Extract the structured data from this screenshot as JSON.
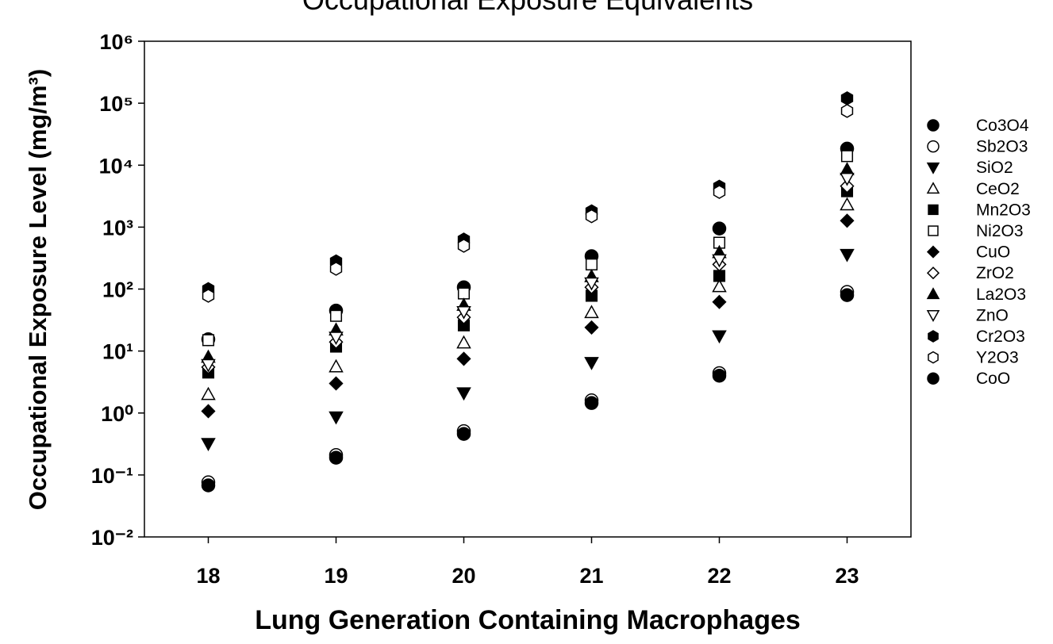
{
  "chart_data": {
    "type": "scatter",
    "title": "Occupational Exposure Equivalents",
    "xlabel": "Lung Generation Containing Macrophages",
    "ylabel": "Occupational Exposure Level (mg/m³)",
    "x": [
      18,
      19,
      20,
      21,
      22,
      23
    ],
    "xlim": [
      17.5,
      23.5
    ],
    "xticks": [
      18,
      19,
      20,
      21,
      22,
      23
    ],
    "ylim": [
      0.01,
      1000000
    ],
    "yscale": "log",
    "yticks": [
      {
        "value": 0.01,
        "label": "10⁻²"
      },
      {
        "value": 0.1,
        "label": "10⁻¹"
      },
      {
        "value": 1,
        "label": "10⁰"
      },
      {
        "value": 10,
        "label": "10¹"
      },
      {
        "value": 100,
        "label": "10²"
      },
      {
        "value": 1000,
        "label": "10³"
      },
      {
        "value": 10000,
        "label": "10⁴"
      },
      {
        "value": 100000,
        "label": "10⁵"
      },
      {
        "value": 1000000,
        "label": "10⁶"
      }
    ],
    "legend": "right",
    "series": [
      {
        "name": "Co3O4",
        "color": "#000000",
        "marker": "circle",
        "filled": true,
        "values": [
          15.5,
          45,
          107,
          340,
          950,
          18500
        ]
      },
      {
        "name": "Sb2O3",
        "color": "#000000",
        "marker": "circle",
        "filled": false,
        "values": [
          0.076,
          0.21,
          0.51,
          1.6,
          4.4,
          90
        ]
      },
      {
        "name": "SiO2",
        "color": "#000000",
        "marker": "triangle-down",
        "filled": true,
        "values": [
          0.32,
          0.86,
          2.1,
          6.5,
          17.5,
          360
        ]
      },
      {
        "name": "CeO2",
        "color": "#000000",
        "marker": "triangle-up",
        "filled": false,
        "values": [
          2,
          5.6,
          13.6,
          42,
          110,
          2300
        ]
      },
      {
        "name": "Mn2O3",
        "color": "#000000",
        "marker": "square",
        "filled": true,
        "values": [
          4.5,
          11.8,
          26,
          78,
          163,
          3800
        ]
      },
      {
        "name": "Ni2O3",
        "color": "#000000",
        "marker": "square",
        "filled": false,
        "values": [
          15,
          37,
          85,
          250,
          560,
          14000
        ]
      },
      {
        "name": "CuO",
        "color": "#000000",
        "marker": "diamond",
        "filled": true,
        "values": [
          1.07,
          3,
          7.5,
          24,
          62,
          1270
        ]
      },
      {
        "name": "ZrO2",
        "color": "#000000",
        "marker": "diamond",
        "filled": false,
        "values": [
          5.5,
          14,
          35,
          107,
          250,
          4600
        ]
      },
      {
        "name": "La2O3",
        "color": "#000000",
        "marker": "triangle-up",
        "filled": true,
        "values": [
          8,
          22,
          55,
          160,
          390,
          8500
        ]
      },
      {
        "name": "ZnO",
        "color": "#000000",
        "marker": "triangle-down",
        "filled": false,
        "values": [
          6,
          16.6,
          43,
          125,
          295,
          6100
        ]
      },
      {
        "name": "Cr2O3",
        "color": "#000000",
        "marker": "hexagon",
        "filled": true,
        "values": [
          100,
          280,
          630,
          1800,
          4500,
          120000
        ]
      },
      {
        "name": "Y2O3",
        "color": "#000000",
        "marker": "hexagon",
        "filled": false,
        "values": [
          78,
          213,
          500,
          1500,
          3700,
          75000
        ]
      },
      {
        "name": "CoO",
        "color": "#000000",
        "marker": "circle",
        "filled": true,
        "values": [
          0.068,
          0.19,
          0.46,
          1.45,
          4,
          80
        ]
      }
    ]
  }
}
